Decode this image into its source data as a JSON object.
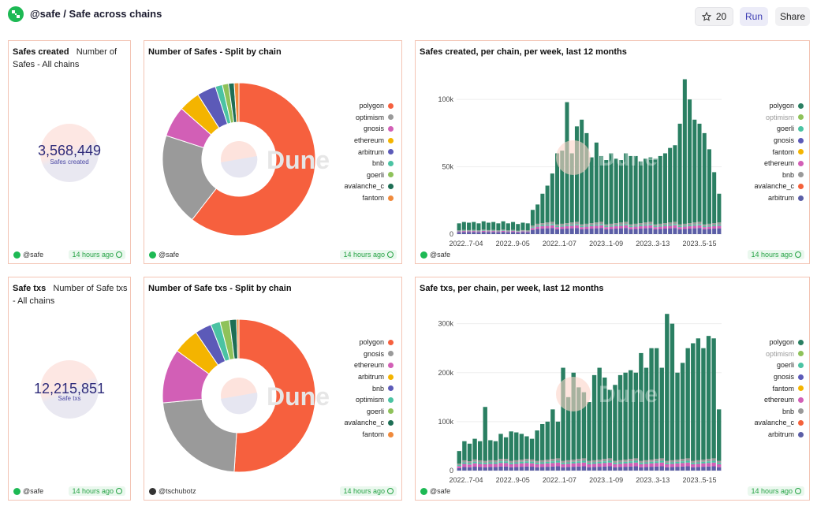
{
  "header": {
    "title": "@safe / Safe across chains",
    "star_count": "20",
    "run_label": "Run",
    "share_label": "Share"
  },
  "panels": {
    "safes_created": {
      "title": "Safes created",
      "subtitle": "Number of Safes - All chains",
      "value": "3,568,449",
      "value_label": "Safes created",
      "owner": "@safe",
      "updated": "14 hours ago"
    },
    "safe_txs": {
      "title": "Safe txs",
      "subtitle": "Number of Safe txs - All chains",
      "value": "12,215,851",
      "value_label": "Safe txs",
      "owner": "@safe",
      "updated": "14 hours ago"
    },
    "pie_safes": {
      "title": "Number of Safes - Split by chain",
      "owner": "@safe",
      "updated": "14 hours ago",
      "watermark": "Dune"
    },
    "pie_txs": {
      "title": "Number of Safe txs - Split by chain",
      "owner": "@tschubotz",
      "updated": "14 hours ago",
      "watermark": "Dune"
    },
    "bar_safes": {
      "title": "Safes created, per chain, per week, last 12 months",
      "owner": "@safe",
      "updated": "14 hours ago",
      "watermark": "Dune"
    },
    "bar_txs": {
      "title": "Safe txs, per chain, per week, last 12 months",
      "owner": "@safe",
      "updated": "14 hours ago",
      "watermark": "Dune"
    }
  },
  "colors": {
    "polygon": "#2a7f62",
    "optimism": "#8fc25a",
    "goerli": "#4bc3a3",
    "gnosis": "#5c5ab8",
    "fantom": "#f4b400",
    "ethereum": "#d25fb6",
    "bnb": "#999999",
    "avalanche_c": "#f4613a",
    "arbitrum": "#5b5ea6",
    "pie_polygon": "#f6603e",
    "pie_optimism": "#9a9a9a",
    "pie_gnosis": "#d25fb6",
    "pie_ethereum": "#f4b400",
    "pie_arbitrum": "#5c5ab8",
    "pie_bnb": "#4bc3a3",
    "pie_goerli": "#8fc25a",
    "pie_avalanche_c": "#1e6e55",
    "pie_fantom": "#f08a3c"
  },
  "chart_data": [
    {
      "type": "pie",
      "id": "pie_safes",
      "labels": [
        "polygon",
        "optimism",
        "gnosis",
        "ethereum",
        "arbitrum",
        "bnb",
        "goerli",
        "avalanche_c",
        "fantom"
      ],
      "legend_colors": [
        "#f6603e",
        "#9a9a9a",
        "#d25fb6",
        "#f4b400",
        "#5c5ab8",
        "#4bc3a3",
        "#8fc25a",
        "#1e6e55",
        "#f08a3c"
      ],
      "values": [
        60.5,
        19.5,
        6.5,
        4.5,
        4.0,
        1.5,
        1.3,
        1.2,
        1.0
      ],
      "legend_position": "right"
    },
    {
      "type": "pie",
      "id": "pie_txs",
      "labels": [
        "polygon",
        "gnosis",
        "ethereum",
        "arbitrum",
        "bnb",
        "optimism",
        "goerli",
        "avalanche_c",
        "fantom"
      ],
      "legend_colors": [
        "#f6603e",
        "#9a9a9a",
        "#d25fb6",
        "#f4b400",
        "#5c5ab8",
        "#4bc3a3",
        "#8fc25a",
        "#1e6e55",
        "#f08a3c"
      ],
      "values": [
        51.0,
        22.5,
        11.5,
        5.5,
        3.5,
        2.0,
        2.0,
        1.5,
        0.5
      ],
      "legend_position": "right"
    },
    {
      "type": "bar",
      "id": "bar_safes",
      "stacked": true,
      "ylim": [
        0,
        120000
      ],
      "yticks": [
        0,
        50000,
        100000
      ],
      "ytick_labels": [
        "0",
        "50k",
        "100k"
      ],
      "xtick_labels": [
        "2022..7-04",
        "2022..9-05",
        "2022..1-07",
        "2023..1-09",
        "2023..3-13",
        "2023..5-15"
      ],
      "legend_position": "right",
      "legend": [
        "polygon",
        "optimism",
        "goerli",
        "gnosis",
        "fantom",
        "ethereum",
        "bnb",
        "avalanche_c",
        "arbitrum"
      ],
      "legend_muted": [
        "optimism"
      ],
      "legend_colors": [
        "#2a7f62",
        "#8fc25a",
        "#4bc3a3",
        "#5c5ab8",
        "#f4b400",
        "#d25fb6",
        "#999999",
        "#f4613a",
        "#5b5ea6"
      ],
      "totals": [
        8000,
        9000,
        8500,
        9000,
        8000,
        9500,
        8500,
        9000,
        8000,
        9500,
        8000,
        9000,
        7500,
        8500,
        8000,
        18000,
        22000,
        30000,
        36000,
        45000,
        60000,
        62000,
        98000,
        60000,
        80000,
        85000,
        75000,
        57000,
        68000,
        58000,
        55000,
        60000,
        56000,
        55000,
        60000,
        58000,
        58000,
        54000,
        56000,
        57000,
        56000,
        58000,
        60000,
        64000,
        66000,
        82000,
        115000,
        100000,
        85000,
        82000,
        75000,
        63000,
        46000,
        30000
      ],
      "base_share": {
        "arbitrum": 0.5,
        "ethereum": 0.22,
        "goerli": 0.1,
        "bnb": 0.18
      }
    },
    {
      "type": "bar",
      "id": "bar_txs",
      "stacked": true,
      "ylim": [
        0,
        330000
      ],
      "yticks": [
        0,
        100000,
        200000,
        300000
      ],
      "ytick_labels": [
        "0",
        "100k",
        "200k",
        "300k"
      ],
      "xtick_labels": [
        "2022..7-04",
        "2022..9-05",
        "2022..1-07",
        "2023..1-09",
        "2023..3-13",
        "2023..5-15"
      ],
      "legend_position": "right",
      "legend": [
        "polygon",
        "optimism",
        "goerli",
        "gnosis",
        "fantom",
        "ethereum",
        "bnb",
        "avalanche_c",
        "arbitrum"
      ],
      "legend_muted": [
        "optimism"
      ],
      "legend_colors": [
        "#2a7f62",
        "#8fc25a",
        "#4bc3a3",
        "#5c5ab8",
        "#f4b400",
        "#d25fb6",
        "#999999",
        "#f4613a",
        "#5b5ea6"
      ],
      "totals": [
        40000,
        60000,
        55000,
        65000,
        60000,
        130000,
        62000,
        60000,
        75000,
        68000,
        80000,
        78000,
        75000,
        70000,
        65000,
        82000,
        95000,
        100000,
        125000,
        100000,
        210000,
        150000,
        200000,
        170000,
        160000,
        140000,
        195000,
        210000,
        190000,
        165000,
        175000,
        195000,
        200000,
        205000,
        200000,
        240000,
        210000,
        250000,
        250000,
        210000,
        320000,
        300000,
        200000,
        220000,
        250000,
        260000,
        270000,
        250000,
        275000,
        270000,
        125000
      ],
      "base_share": {
        "arbitrum": 0.35,
        "ethereum": 0.3,
        "goerli": 0.15,
        "bnb": 0.2
      }
    }
  ]
}
